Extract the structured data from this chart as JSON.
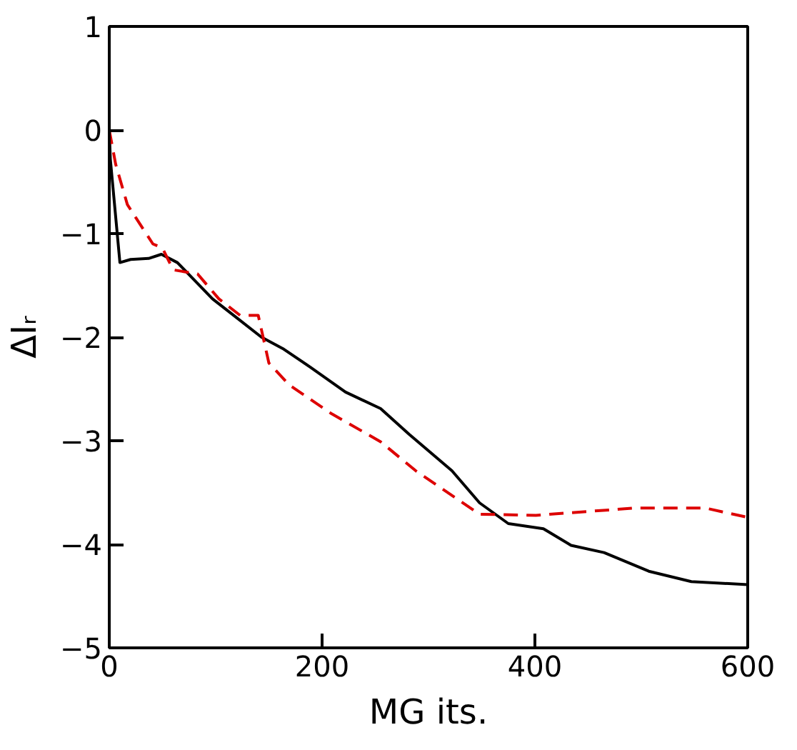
{
  "chart_data": {
    "type": "line",
    "xlabel": "MG its.",
    "ylabel": "ΔIᵣ",
    "xlim": [
      0,
      600
    ],
    "xticks": [
      0,
      200,
      400,
      600
    ],
    "ylim": [
      -5,
      1
    ],
    "yticks": [
      -5,
      -4,
      -3,
      -2,
      -1,
      0,
      1
    ],
    "grid": false,
    "series": [
      {
        "color": "#000000",
        "line_style": "solid",
        "x": [
          0,
          1,
          10,
          20,
          37,
          49,
          64,
          97,
          117,
          143,
          163,
          189,
          222,
          255,
          282,
          322,
          348,
          375,
          408,
          434,
          465,
          507,
          547,
          600
        ],
        "values": [
          0,
          -0.28,
          -1.28,
          -1.25,
          -1.24,
          -1.2,
          -1.28,
          -1.63,
          -1.79,
          -2.0,
          -2.11,
          -2.29,
          -2.53,
          -2.69,
          -2.94,
          -3.29,
          -3.6,
          -3.8,
          -3.85,
          -4.01,
          -4.08,
          -4.26,
          -4.36,
          -4.39
        ]
      },
      {
        "color": "#dd0000",
        "line_style": "dashed",
        "x": [
          0,
          6,
          17,
          41,
          50,
          60,
          83,
          103,
          123,
          140,
          150,
          169,
          209,
          255,
          288,
          348,
          401,
          494,
          560,
          600
        ],
        "values": [
          0,
          -0.33,
          -0.72,
          -1.1,
          -1.14,
          -1.35,
          -1.39,
          -1.63,
          -1.79,
          -1.79,
          -2.25,
          -2.46,
          -2.74,
          -3.01,
          -3.29,
          -3.71,
          -3.72,
          -3.65,
          -3.65,
          -3.74
        ]
      }
    ]
  }
}
